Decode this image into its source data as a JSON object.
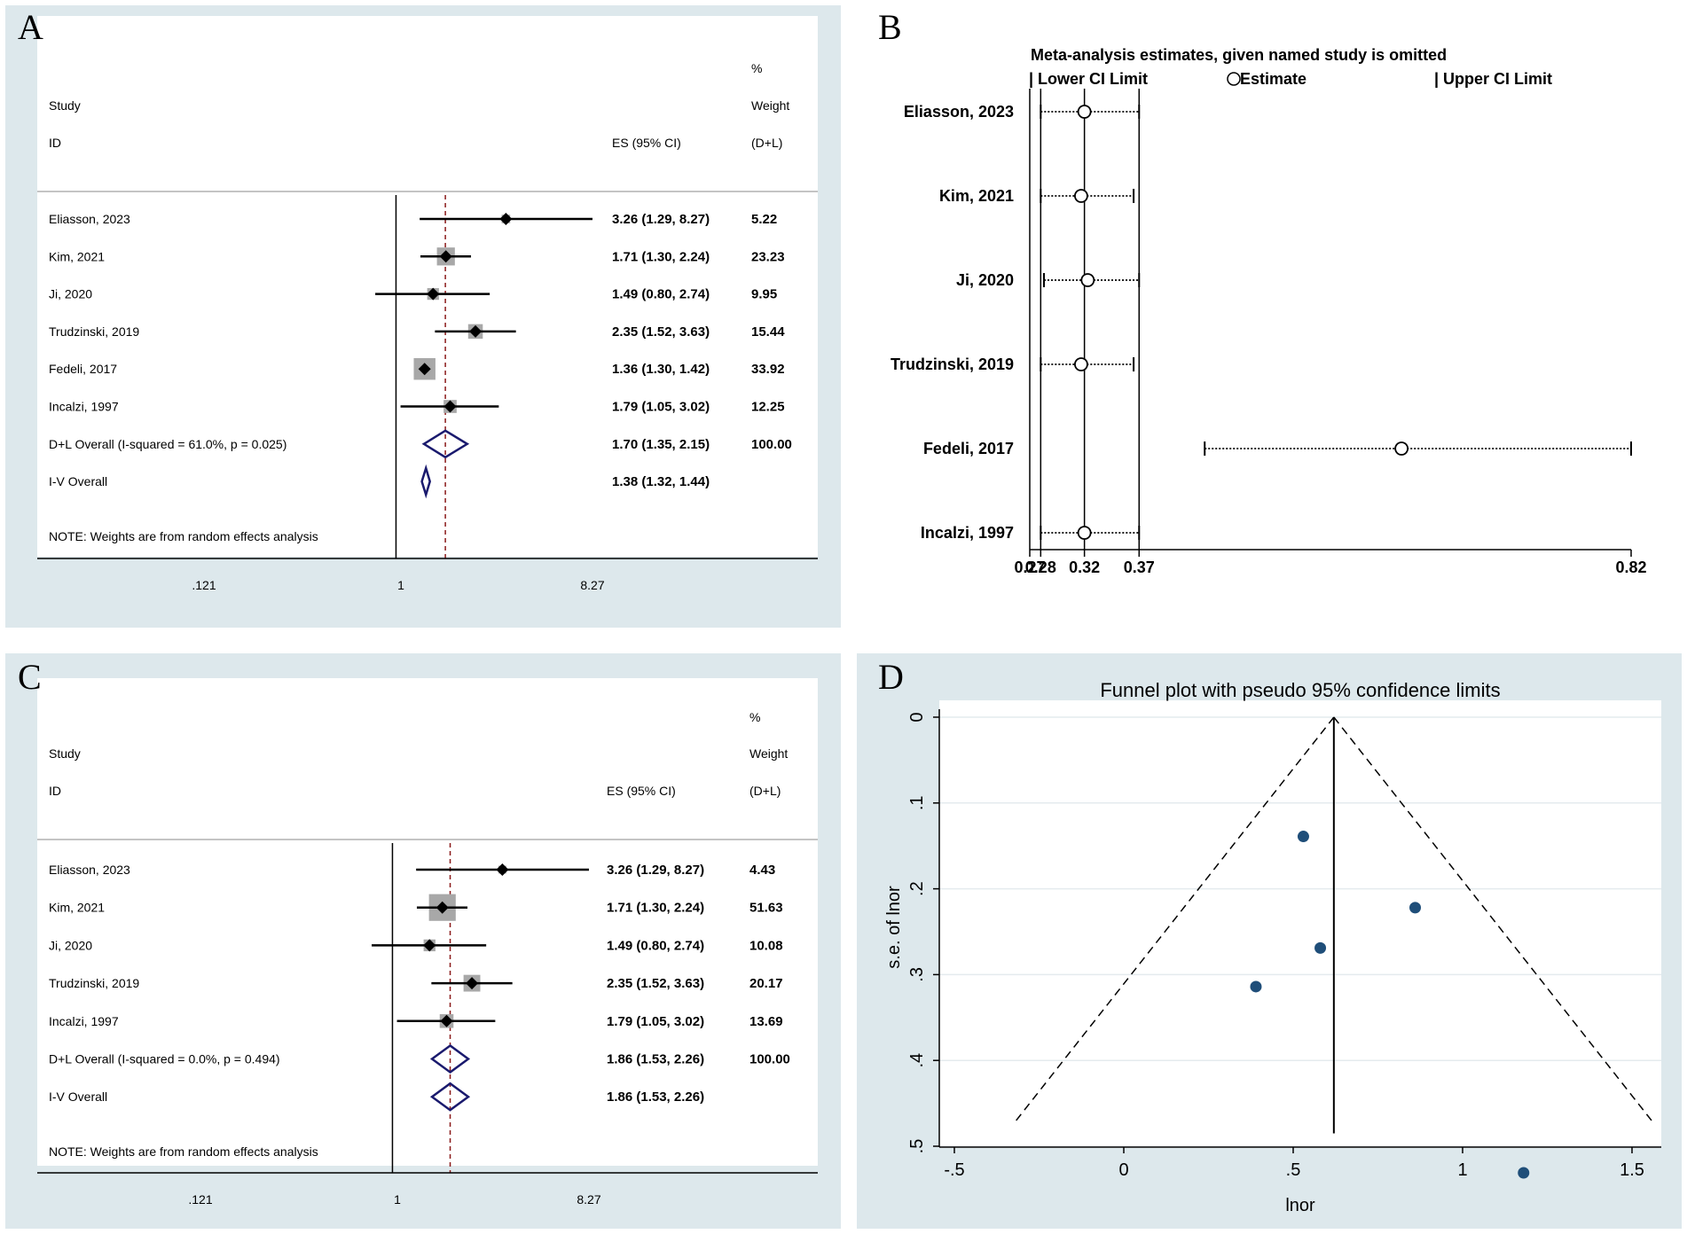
{
  "chart_data": [
    {
      "type": "forest",
      "panel": "A",
      "header": {
        "study": "Study",
        "id": "ID",
        "es": "ES (95% CI)",
        "pct": "%",
        "weight": "Weight",
        "dl": "(D+L)"
      },
      "studies": [
        {
          "name": "Eliasson, 2023",
          "es": 3.26,
          "lo": 1.29,
          "hi": 8.27,
          "label": "3.26 (1.29, 8.27)",
          "weight": 5.22,
          "weight_label": "5.22"
        },
        {
          "name": "Kim, 2021",
          "es": 1.71,
          "lo": 1.3,
          "hi": 2.24,
          "label": "1.71 (1.30, 2.24)",
          "weight": 23.23,
          "weight_label": "23.23"
        },
        {
          "name": "Ji, 2020",
          "es": 1.49,
          "lo": 0.8,
          "hi": 2.74,
          "label": "1.49 (0.80, 2.74)",
          "weight": 9.95,
          "weight_label": "9.95"
        },
        {
          "name": "Trudzinski, 2019",
          "es": 2.35,
          "lo": 1.52,
          "hi": 3.63,
          "label": "2.35 (1.52, 3.63)",
          "weight": 15.44,
          "weight_label": "15.44"
        },
        {
          "name": "Fedeli, 2017",
          "es": 1.36,
          "lo": 1.3,
          "hi": 1.42,
          "label": "1.36 (1.30, 1.42)",
          "weight": 33.92,
          "weight_label": "33.92"
        },
        {
          "name": "Incalzi, 1997",
          "es": 1.79,
          "lo": 1.05,
          "hi": 3.02,
          "label": "1.79 (1.05, 3.02)",
          "weight": 12.25,
          "weight_label": "12.25"
        }
      ],
      "overall": [
        {
          "name": "D+L Overall  (I-squared = 61.0%, p = 0.025)",
          "es": 1.7,
          "lo": 1.35,
          "hi": 2.15,
          "label": "1.70 (1.35, 2.15)",
          "weight_label": "100.00"
        },
        {
          "name": "I-V Overall",
          "es": 1.38,
          "lo": 1.32,
          "hi": 1.44,
          "label": "1.38 (1.32, 1.44)",
          "weight_label": ""
        }
      ],
      "note": "NOTE: Weights are from random effects analysis",
      "xticks": [
        ".121",
        "1",
        "8.27"
      ],
      "xscale": "log",
      "xlim": [
        0.121,
        8.27
      ]
    },
    {
      "type": "sensitivity",
      "panel": "B",
      "title": "Meta-analysis estimates, given named study is omitted",
      "legend": [
        "| Lower CI Limit",
        "Estimate",
        "| Upper CI Limit"
      ],
      "studies": [
        {
          "name": "Eliasson, 2023",
          "lo": 0.28,
          "est": 0.32,
          "hi": 0.37
        },
        {
          "name": "Kim, 2021",
          "lo": 0.28,
          "est": 0.317,
          "hi": 0.365
        },
        {
          "name": "Ji, 2020",
          "lo": 0.283,
          "est": 0.323,
          "hi": 0.37
        },
        {
          "name": "Trudzinski, 2019",
          "lo": 0.28,
          "est": 0.317,
          "hi": 0.365
        },
        {
          "name": "Fedeli, 2017",
          "lo": 0.43,
          "est": 0.61,
          "hi": 0.82
        },
        {
          "name": "Incalzi, 1997",
          "lo": 0.28,
          "est": 0.32,
          "hi": 0.37
        }
      ],
      "reference_lines": [
        0.27,
        0.28,
        0.32,
        0.37
      ],
      "xticks": [
        "0.27",
        "0.28",
        "0.32",
        "0.37",
        "0.82"
      ],
      "xlim": [
        0.27,
        0.82
      ]
    },
    {
      "type": "forest",
      "panel": "C",
      "header": {
        "study": "Study",
        "id": "ID",
        "es": "ES (95% CI)",
        "pct": "%",
        "weight": "Weight",
        "dl": "(D+L)"
      },
      "studies": [
        {
          "name": "Eliasson, 2023",
          "es": 3.26,
          "lo": 1.29,
          "hi": 8.27,
          "label": "3.26 (1.29, 8.27)",
          "weight": 4.43,
          "weight_label": "4.43"
        },
        {
          "name": "Kim, 2021",
          "es": 1.71,
          "lo": 1.3,
          "hi": 2.24,
          "label": "1.71 (1.30, 2.24)",
          "weight": 51.63,
          "weight_label": "51.63"
        },
        {
          "name": "Ji, 2020",
          "es": 1.49,
          "lo": 0.8,
          "hi": 2.74,
          "label": "1.49 (0.80, 2.74)",
          "weight": 10.08,
          "weight_label": "10.08"
        },
        {
          "name": "Trudzinski, 2019",
          "es": 2.35,
          "lo": 1.52,
          "hi": 3.63,
          "label": "2.35 (1.52, 3.63)",
          "weight": 20.17,
          "weight_label": "20.17"
        },
        {
          "name": "Incalzi, 1997",
          "es": 1.79,
          "lo": 1.05,
          "hi": 3.02,
          "label": "1.79 (1.05, 3.02)",
          "weight": 13.69,
          "weight_label": "13.69"
        }
      ],
      "overall": [
        {
          "name": "D+L Overall  (I-squared = 0.0%, p = 0.494)",
          "es": 1.86,
          "lo": 1.53,
          "hi": 2.26,
          "label": "1.86 (1.53, 2.26)",
          "weight_label": "100.00"
        },
        {
          "name": "I-V Overall",
          "es": 1.86,
          "lo": 1.53,
          "hi": 2.26,
          "label": "1.86 (1.53, 2.26)",
          "weight_label": ""
        }
      ],
      "note": "NOTE: Weights are from random effects analysis",
      "xticks": [
        ".121",
        "1",
        "8.27"
      ],
      "xscale": "log",
      "xlim": [
        0.121,
        8.27
      ]
    },
    {
      "type": "scatter",
      "panel": "D",
      "title": "Funnel plot with pseudo 95% confidence limits",
      "xlabel": "lnor",
      "ylabel": "s.e. of lnor",
      "xticks": [
        "-.5",
        "0",
        ".5",
        "1",
        "1.5"
      ],
      "yticks": [
        "0",
        ".1",
        ".2",
        ".3",
        ".4",
        ".5"
      ],
      "xlim": [
        -0.55,
        1.58
      ],
      "ylim": [
        0,
        0.5
      ],
      "y_reversed": true,
      "pooled_estimate": 0.62,
      "points": [
        {
          "x": 0.53,
          "y": 0.139
        },
        {
          "x": 0.86,
          "y": 0.222
        },
        {
          "x": 0.58,
          "y": 0.269
        },
        {
          "x": 0.39,
          "y": 0.314
        },
        {
          "x": 1.18,
          "y": 0.531
        }
      ]
    }
  ],
  "panels": {
    "a": "A",
    "b": "B",
    "c": "C",
    "d": "D"
  },
  "colors": {
    "panel_bg": "#dde8ec",
    "marker": "#1f4e79",
    "diamond": "#1a1a6e",
    "dashed_ref": "#8b1a1a",
    "weight_box": "#a8a8a8"
  }
}
